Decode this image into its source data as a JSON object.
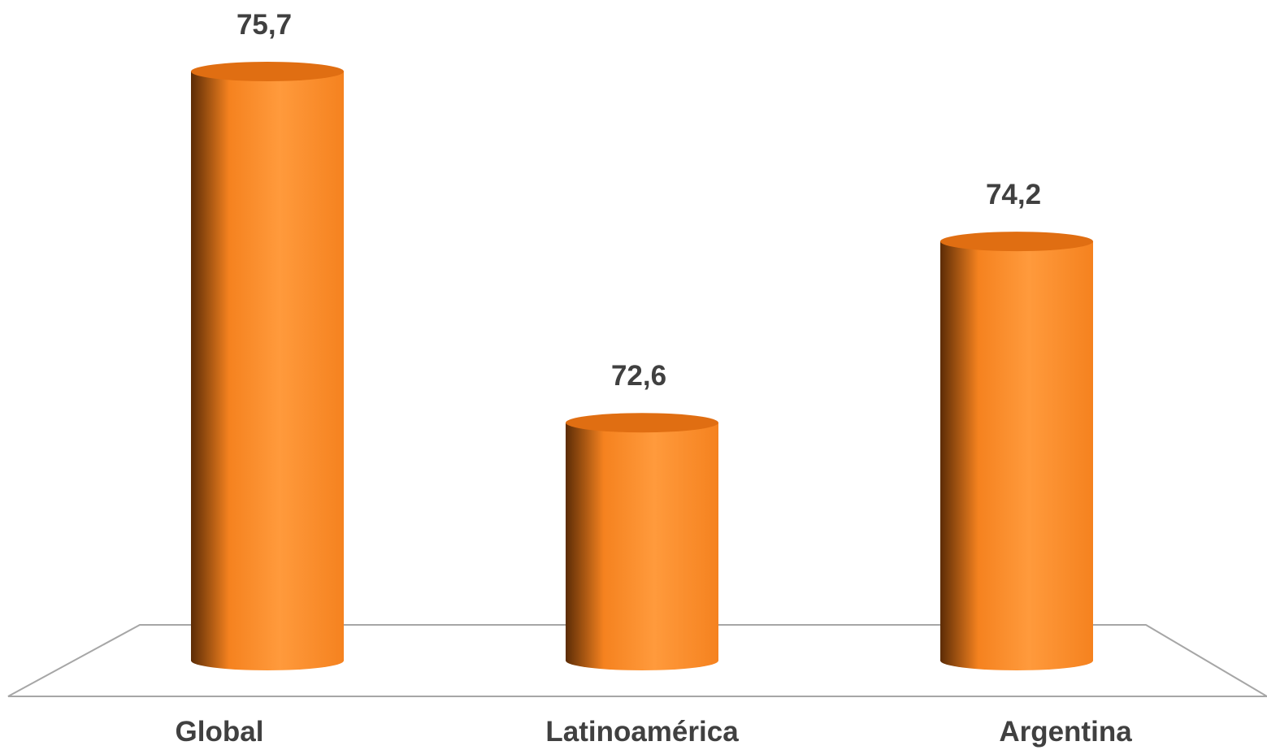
{
  "chart_data": {
    "type": "bar",
    "style": "3d-cylinder",
    "categories": [
      "Global",
      "Latinoamérica",
      "Argentina"
    ],
    "values": [
      75.7,
      72.6,
      74.2
    ],
    "value_labels": [
      "75,7",
      "72,6",
      "74,2"
    ],
    "title": "",
    "xlabel": "",
    "ylabel": "",
    "ylim": [
      70.5,
      75.7
    ],
    "grid": false,
    "legend": "none"
  },
  "colors": {
    "bar_light": "#ff9a3c",
    "bar_mid": "#f5821f",
    "bar_dark": "#5c2c06",
    "bar_top": "#e06e12",
    "text": "#404040",
    "floor_line": "#a6a6a6"
  }
}
